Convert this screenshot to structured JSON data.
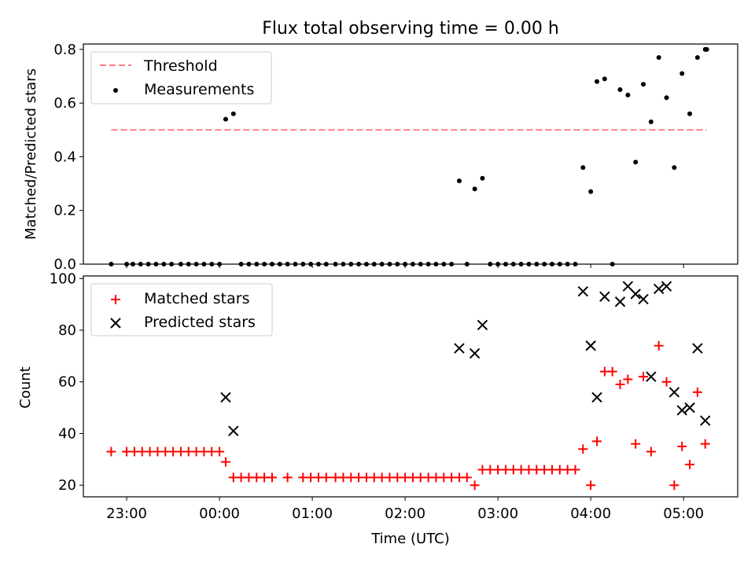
{
  "title": "Flux total observing time = 0.00 h",
  "xlabel": "Time (UTC)",
  "x_ticks": [
    "23:00",
    "00:00",
    "01:00",
    "02:00",
    "03:00",
    "04:00",
    "05:00"
  ],
  "colors": {
    "threshold": "#ff7f7f",
    "measurements": "#000000",
    "matched": "#ff0000",
    "predicted": "#000000"
  },
  "chart_data": [
    {
      "type": "scatter",
      "title": "Flux total observing time = 0.00 h",
      "xlabel": "",
      "ylabel": "Matched/Predicted stars",
      "xlim": [
        "22:32",
        "05:35"
      ],
      "ylim": [
        0,
        0.82
      ],
      "y_ticks": [
        "0.0",
        "0.2",
        "0.4",
        "0.6",
        "0.8"
      ],
      "legend": "top-left",
      "threshold": {
        "name": "Threshold",
        "value": 0.5,
        "x_start": "22:50",
        "x_end": "05:15"
      },
      "series": [
        {
          "name": "Measurements",
          "x": [
            "22:50",
            "23:00",
            "23:04",
            "23:09",
            "23:14",
            "23:19",
            "23:24",
            "23:29",
            "23:35",
            "23:40",
            "23:45",
            "23:50",
            "23:55",
            "00:00",
            "00:04",
            "00:09",
            "00:14",
            "00:19",
            "00:24",
            "00:29",
            "00:34",
            "00:39",
            "00:44",
            "00:49",
            "00:54",
            "00:59",
            "01:04",
            "01:09",
            "01:15",
            "01:20",
            "01:25",
            "01:30",
            "01:35",
            "01:40",
            "01:45",
            "01:50",
            "01:55",
            "02:00",
            "02:05",
            "02:10",
            "02:15",
            "02:20",
            "02:25",
            "02:30",
            "02:35",
            "02:40",
            "02:45",
            "02:50",
            "02:55",
            "03:00",
            "03:05",
            "03:10",
            "03:15",
            "03:20",
            "03:25",
            "03:30",
            "03:35",
            "03:40",
            "03:45",
            "03:50",
            "03:55",
            "04:00",
            "04:04",
            "04:09",
            "04:14",
            "04:19",
            "04:24",
            "04:29",
            "04:34",
            "04:39",
            "04:44",
            "04:49",
            "04:54",
            "04:59",
            "05:04",
            "05:09",
            "05:14",
            "05:15"
          ],
          "y": [
            0,
            0,
            0,
            0,
            0,
            0,
            0,
            0,
            0,
            0,
            0,
            0,
            0,
            0,
            0.54,
            0.56,
            0,
            0,
            0,
            0,
            0,
            0,
            0,
            0,
            0,
            0,
            0,
            0,
            0,
            0,
            0,
            0,
            0,
            0,
            0,
            0,
            0,
            0,
            0,
            0,
            0,
            0,
            0,
            0,
            0.31,
            0,
            0.28,
            0.32,
            0,
            0,
            0,
            0,
            0,
            0,
            0,
            0,
            0,
            0,
            0,
            0,
            0.36,
            0.27,
            0.68,
            0.69,
            0,
            0.65,
            0.63,
            0.38,
            0.67,
            0.53,
            0.77,
            0.62,
            0.36,
            0.71,
            0.56,
            0.77,
            0.8,
            0.8
          ]
        }
      ]
    },
    {
      "type": "scatter",
      "xlabel": "Time (UTC)",
      "ylabel": "Count",
      "xlim": [
        "22:32",
        "05:35"
      ],
      "ylim": [
        15.5,
        101
      ],
      "y_ticks": [
        "20",
        "40",
        "60",
        "80",
        "100"
      ],
      "legend": "top-left",
      "series": [
        {
          "name": "Matched stars",
          "x": [
            "22:50",
            "23:00",
            "23:05",
            "23:10",
            "23:15",
            "23:20",
            "23:25",
            "23:30",
            "23:35",
            "23:40",
            "23:45",
            "23:50",
            "23:55",
            "00:00",
            "00:04",
            "00:09",
            "00:14",
            "00:19",
            "00:24",
            "00:29",
            "00:34",
            "00:44",
            "00:54",
            "00:59",
            "01:04",
            "01:09",
            "01:15",
            "01:20",
            "01:25",
            "01:30",
            "01:35",
            "01:40",
            "01:45",
            "01:50",
            "01:55",
            "02:00",
            "02:05",
            "02:10",
            "02:15",
            "02:20",
            "02:25",
            "02:30",
            "02:35",
            "02:40",
            "02:45",
            "02:50",
            "02:55",
            "03:00",
            "03:05",
            "03:10",
            "03:15",
            "03:20",
            "03:25",
            "03:30",
            "03:35",
            "03:40",
            "03:45",
            "03:50",
            "03:55",
            "04:00",
            "04:04",
            "04:09",
            "04:14",
            "04:19",
            "04:24",
            "04:29",
            "04:34",
            "04:39",
            "04:44",
            "04:49",
            "04:54",
            "04:59",
            "05:04",
            "05:09",
            "05:14"
          ],
          "y": [
            33,
            33,
            33,
            33,
            33,
            33,
            33,
            33,
            33,
            33,
            33,
            33,
            33,
            33,
            29,
            23,
            23,
            23,
            23,
            23,
            23,
            23,
            23,
            23,
            23,
            23,
            23,
            23,
            23,
            23,
            23,
            23,
            23,
            23,
            23,
            23,
            23,
            23,
            23,
            23,
            23,
            23,
            23,
            23,
            20,
            26,
            26,
            26,
            26,
            26,
            26,
            26,
            26,
            26,
            26,
            26,
            26,
            26,
            34,
            20,
            37,
            64,
            64,
            59,
            61,
            36,
            62,
            33,
            74,
            60,
            20,
            35,
            28,
            56,
            36
          ]
        },
        {
          "name": "Predicted stars",
          "x": [
            "00:04",
            "00:09",
            "02:35",
            "02:45",
            "02:50",
            "03:55",
            "04:00",
            "04:04",
            "04:09",
            "04:19",
            "04:24",
            "04:29",
            "04:34",
            "04:39",
            "04:44",
            "04:49",
            "04:54",
            "04:59",
            "05:04",
            "05:09",
            "05:14"
          ],
          "y": [
            54,
            41,
            73,
            71,
            82,
            95,
            74,
            54,
            93,
            91,
            97,
            94,
            92,
            62,
            96,
            97,
            56,
            49,
            50,
            73,
            45
          ]
        }
      ]
    }
  ]
}
